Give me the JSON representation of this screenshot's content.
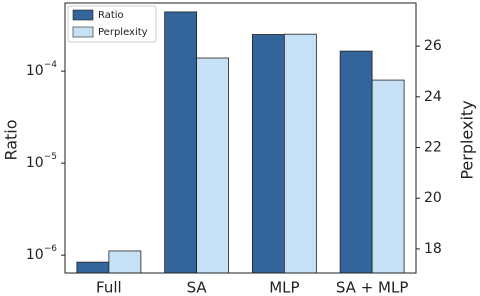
{
  "chart_data": {
    "type": "bar",
    "categories": [
      "Full",
      "SA",
      "MLP",
      "SA + MLP"
    ],
    "y_label": "Ratio",
    "y2_label": "Perplexity",
    "y_scale": "log",
    "ylim": [
      6.4e-07,
      0.00055
    ],
    "yticks": [
      {
        "value": 1e-06,
        "label": "10",
        "exponent": "−6"
      },
      {
        "value": 1e-05,
        "label": "10",
        "exponent": "−5"
      },
      {
        "value": 0.0001,
        "label": "10",
        "exponent": "−4"
      }
    ],
    "y2lim": [
      17.05,
      27.7
    ],
    "y2ticks": [
      18,
      20,
      22,
      24,
      26
    ],
    "legend": "upper left",
    "series": [
      {
        "name": "Ratio",
        "color": "#33659a",
        "values": [
          8.4e-07,
          0.00044,
          0.00025,
          0.000165
        ]
      },
      {
        "name": "Perplexity",
        "color": "#c6e1f6",
        "axis": "y2",
        "values": [
          17.92,
          25.53,
          26.47,
          24.66
        ]
      }
    ]
  }
}
